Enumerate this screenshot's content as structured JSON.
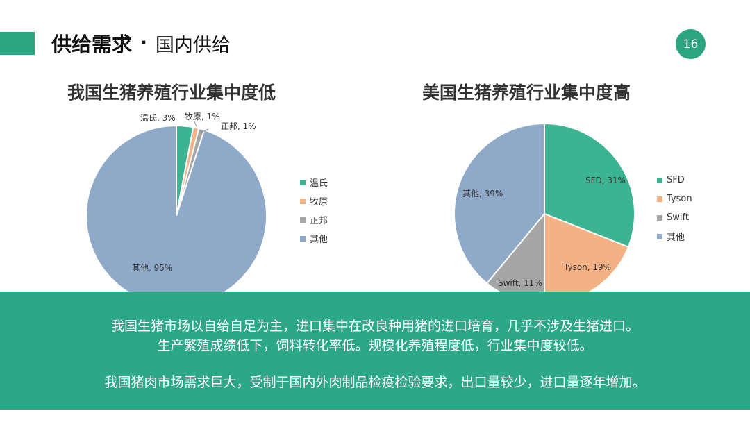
{
  "header": {
    "title_main": "供给需求",
    "title_sep": "·",
    "title_sub": "国内供给",
    "page_number": "16"
  },
  "colors": {
    "accent": "#2aa580",
    "wenshi": "#3cb391",
    "muyuan": "#f4b183",
    "zhengbang": "#a6a6a6",
    "other": "#8fa9c9"
  },
  "chart_data": [
    {
      "type": "pie",
      "title": "我国生猪养殖行业集中度低",
      "labels": [
        "温氏",
        "牧原",
        "正邦",
        "其他"
      ],
      "values": [
        3,
        1,
        1,
        95
      ],
      "data_labels": [
        "温氏, 3%",
        "牧原, 1%",
        "正邦, 1%",
        "其他, 95%"
      ],
      "colors": [
        "#3cb391",
        "#f4b183",
        "#a6a6a6",
        "#8fa9c9"
      ],
      "legend_position": "right"
    },
    {
      "type": "pie",
      "title": "美国生猪养殖行业集中度高",
      "labels": [
        "SFD",
        "Tyson",
        "Swift",
        "其他"
      ],
      "values": [
        31,
        19,
        11,
        39
      ],
      "data_labels": [
        "SFD, 31%",
        "Tyson, 19%",
        "Swift, 11%",
        "其他, 39%"
      ],
      "colors": [
        "#3cb391",
        "#f4b183",
        "#a6a6a6",
        "#8fa9c9"
      ],
      "legend_position": "right"
    }
  ],
  "summary": {
    "line1": "我国生猪市场以自给自足为主，进口集中在改良种用猪的进口培育，几乎不涉及生猪进口。",
    "line2": "生产繁殖成绩低下，饲料转化率低。规模化养殖程度低，行业集中度较低。",
    "line3": "我国猪肉市场需求巨大，受制于国内外肉制品检疫检验要求，出口量较少，进口量逐年增加。"
  }
}
